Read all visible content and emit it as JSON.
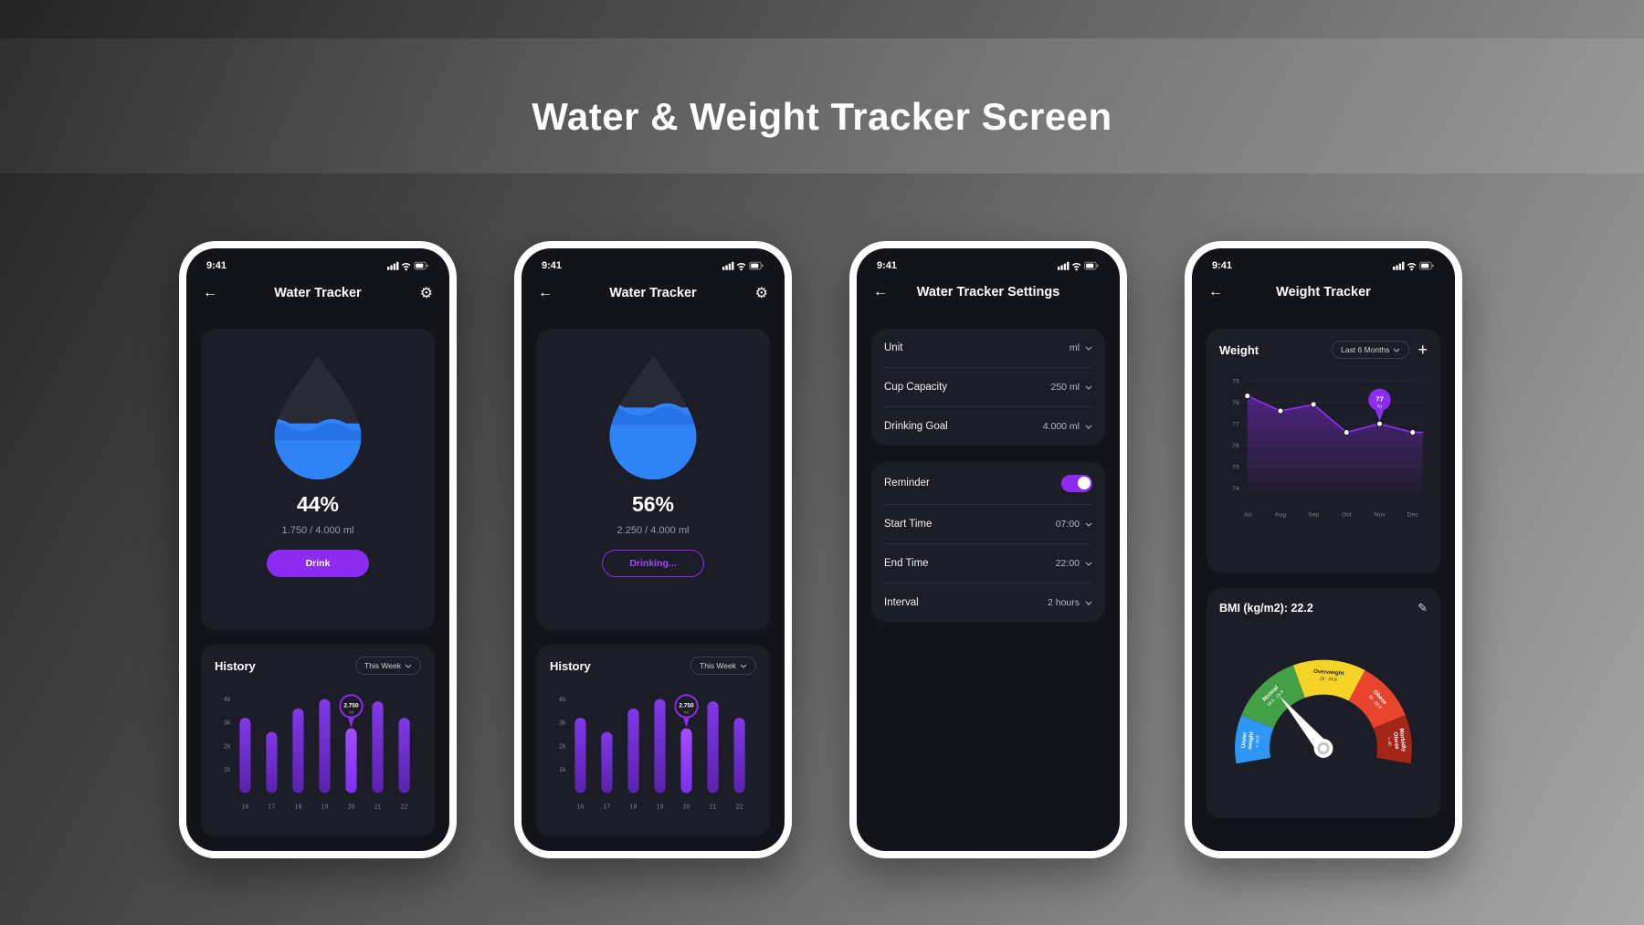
{
  "page_title": "Water & Weight Tracker Screen",
  "accent_color": "#8b2cf0",
  "water_blue": "#3083f5",
  "icons": {
    "back": "←",
    "settings": "⚙",
    "edit": "✎",
    "plus": "+"
  },
  "phone1": {
    "status_time": "9:41",
    "header_title": "Water Tracker",
    "water_level": 44,
    "percent": "44%",
    "amount": "1.750 / 4.000 ml",
    "button_label": "Drink",
    "history_title": "History",
    "filter_label": "This Week"
  },
  "phone2": {
    "status_time": "9:41",
    "header_title": "Water Tracker",
    "water_level": 56,
    "percent": "56%",
    "amount": "2.250 / 4.000 ml",
    "button_label": "Drinking...",
    "history_title": "History",
    "filter_label": "This Week"
  },
  "phone3": {
    "status_time": "9:41",
    "header_title": "Water Tracker Settings",
    "rows_group1": [
      {
        "label": "Unit",
        "value": "ml"
      },
      {
        "label": "Cup Capacity",
        "value": "250 ml"
      },
      {
        "label": "Drinking Goal",
        "value": "4.000 ml"
      }
    ],
    "reminder_label": "Reminder",
    "reminder_on": true,
    "rows_group2": [
      {
        "label": "Start Time",
        "value": "07:00"
      },
      {
        "label": "End Time",
        "value": "22:00"
      },
      {
        "label": "Interval",
        "value": "2 hours"
      }
    ]
  },
  "phone4": {
    "status_time": "9:41",
    "header_title": "Weight Tracker",
    "weight_title": "Weight",
    "filter_label": "Last 6 Months",
    "bmi_title": "BMI (kg/m2): 22.2"
  },
  "chart_data": [
    {
      "id": "hist1",
      "type": "bar",
      "title": "History",
      "categories": [
        "16",
        "17",
        "18",
        "19",
        "20",
        "21",
        "22"
      ],
      "values": [
        3200,
        2600,
        3600,
        4000,
        2750,
        3900,
        3200
      ],
      "ylim": [
        0,
        4000
      ],
      "yticks": [
        {
          "v": 4000,
          "label": "4k"
        },
        {
          "v": 3000,
          "label": "3k"
        },
        {
          "v": 2000,
          "label": "2k"
        },
        {
          "v": 1000,
          "label": "1k"
        }
      ],
      "highlight_index": 4,
      "highlight_label": "2.750",
      "highlight_sublabel": "ml",
      "bar_top": "#8138ea",
      "bar_bottom": "#5a22ad",
      "hl_top": "#a44dff",
      "hl_bottom": "#7b2ff0"
    },
    {
      "id": "hist2",
      "type": "bar",
      "title": "History",
      "categories": [
        "16",
        "17",
        "18",
        "19",
        "20",
        "21",
        "22"
      ],
      "values": [
        3200,
        2600,
        3600,
        4000,
        2750,
        3900,
        3200
      ],
      "ylim": [
        0,
        4000
      ],
      "yticks": [
        {
          "v": 4000,
          "label": "4k"
        },
        {
          "v": 3000,
          "label": "3k"
        },
        {
          "v": 2000,
          "label": "2k"
        },
        {
          "v": 1000,
          "label": "1k"
        }
      ],
      "highlight_index": 4,
      "highlight_label": "2.750",
      "highlight_sublabel": "ml",
      "bar_top": "#8138ea",
      "bar_bottom": "#5a22ad",
      "hl_top": "#a44dff",
      "hl_bottom": "#7b2ff0"
    },
    {
      "id": "weightline",
      "type": "line",
      "title": "Weight",
      "x": [
        "Jul",
        "Aug",
        "Sep",
        "Oct",
        "Nov",
        "Dec"
      ],
      "values": [
        78.3,
        77.6,
        77.9,
        76.6,
        77,
        76.6
      ],
      "yticks": [
        79,
        78,
        77,
        76,
        75,
        74
      ],
      "ylim": [
        74,
        79
      ],
      "highlight_index": 4,
      "highlight_label": "77",
      "highlight_sublabel": "kg",
      "line_color": "#8b2cf0"
    },
    {
      "id": "bmigauge",
      "type": "gauge",
      "title": "BMI (kg/m2): 22.2",
      "value": 22.2,
      "needle_angle_deg": 130,
      "segments": [
        {
          "name": "Under weight",
          "range": "< 18.5",
          "color": "#2e97f5",
          "text_color": "#ffffff",
          "sweep": 32
        },
        {
          "name": "Normal",
          "range": "18.5 - 24.9",
          "color": "#43a047",
          "text_color": "#ffffff",
          "sweep": 48
        },
        {
          "name": "Overweight",
          "range": "25 - 29.9",
          "color": "#f5d327",
          "text_color": "#2b2b2b",
          "sweep": 48
        },
        {
          "name": "Obese",
          "range": "30 - 39.9",
          "color": "#e8442e",
          "text_color": "#ffffff",
          "sweep": 40
        },
        {
          "name": "Morbidly Obese",
          "range": "> 40",
          "color": "#a32618",
          "text_color": "#ffffff",
          "sweep": 32
        }
      ]
    }
  ]
}
